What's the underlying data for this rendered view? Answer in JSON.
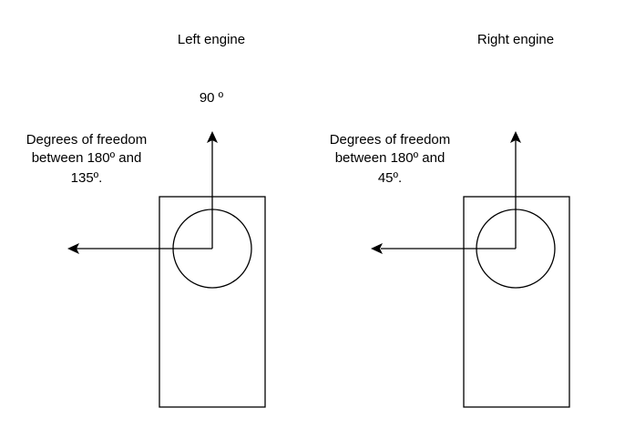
{
  "diagram": {
    "left": {
      "title": "Left engine",
      "vertical_label": "90 º",
      "freedom_lines": [
        "Degrees of freedom",
        "between 180º and",
        "135º."
      ]
    },
    "right": {
      "title": "Right engine",
      "freedom_lines": [
        "Degrees of freedom",
        "between 180º and",
        "45º."
      ]
    }
  },
  "colors": {
    "stroke": "#000000",
    "background": "#ffffff"
  }
}
